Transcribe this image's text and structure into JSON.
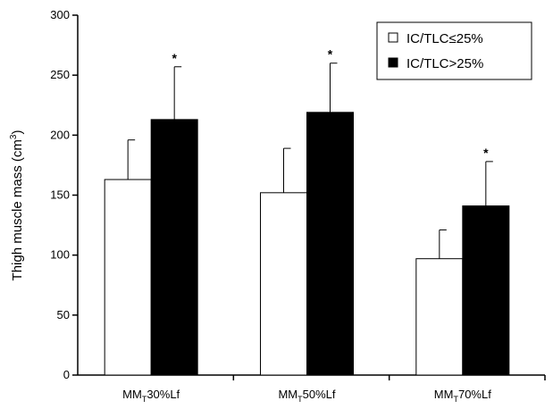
{
  "chart_data": {
    "type": "bar",
    "categories": [
      {
        "main": "MM",
        "sub": "T",
        "rest": "30%Lf"
      },
      {
        "main": "MM",
        "sub": "T",
        "rest": "50%Lf"
      },
      {
        "main": "MM",
        "sub": "T",
        "rest": "70%Lf"
      }
    ],
    "series": [
      {
        "name": "IC/TLC≤25%",
        "color": "#ffffff",
        "values": [
          163,
          152,
          97
        ],
        "errors": [
          33,
          37,
          24
        ],
        "significance": [
          "",
          "",
          ""
        ]
      },
      {
        "name": "IC/TLC>25%",
        "color": "#000000",
        "values": [
          213,
          219,
          141
        ],
        "errors": [
          44,
          41,
          37
        ],
        "significance": [
          "*",
          "*",
          "*"
        ]
      }
    ],
    "ylabel": {
      "main": "Thigh muscle mass (cm",
      "sup": "3",
      "end": ")"
    },
    "ylim": [
      0,
      300
    ],
    "yticks": [
      0,
      50,
      100,
      150,
      200,
      250,
      300
    ],
    "grid": false,
    "legend_position": "top-right"
  }
}
